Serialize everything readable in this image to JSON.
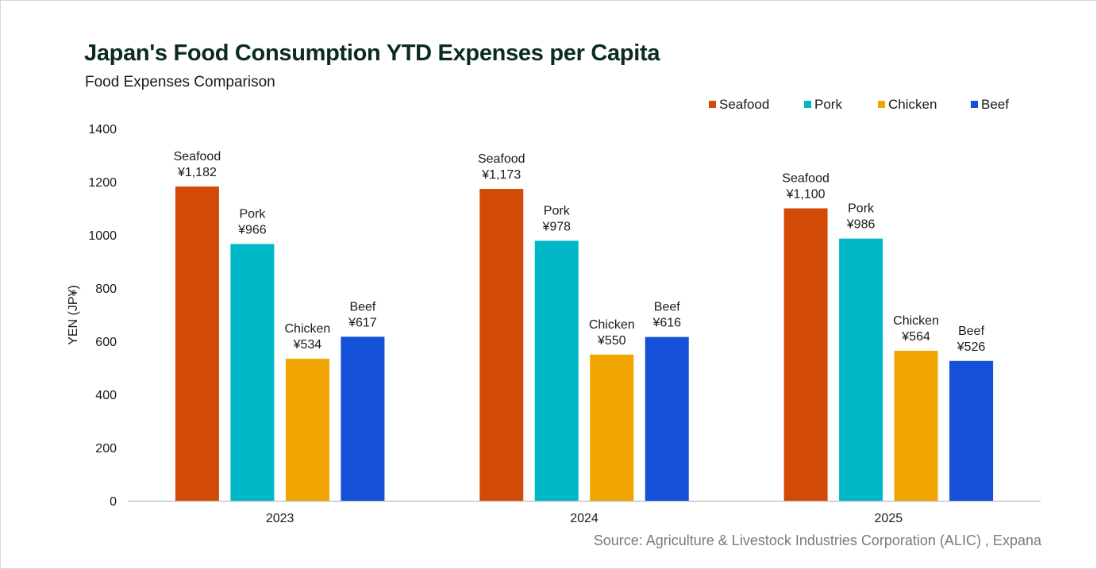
{
  "chart_data": {
    "type": "bar",
    "title": "Japan's Food Consumption YTD Expenses per Capita",
    "subtitle": "Food Expenses Comparison",
    "ylabel": "YEN (JP¥)",
    "xlabel": "",
    "ylim": [
      0,
      1400
    ],
    "yticks": [
      0,
      200,
      400,
      600,
      800,
      1000,
      1200,
      1400
    ],
    "grid": false,
    "legend_position": "top-right",
    "categories": [
      "2023",
      "2024",
      "2025"
    ],
    "series": [
      {
        "name": "Seafood",
        "color": "#d24b06",
        "values": [
          1182,
          1173,
          1100
        ],
        "labels": [
          "¥1,182",
          "¥1,173",
          "¥1,100"
        ]
      },
      {
        "name": "Pork",
        "color": "#00b8c8",
        "values": [
          966,
          978,
          986
        ],
        "labels": [
          "¥966",
          "¥978",
          "¥986"
        ]
      },
      {
        "name": "Chicken",
        "color": "#f0a500",
        "values": [
          534,
          550,
          564
        ],
        "labels": [
          "¥534",
          "¥550",
          "¥564"
        ]
      },
      {
        "name": "Beef",
        "color": "#1450d8",
        "values": [
          617,
          616,
          526
        ],
        "labels": [
          "¥617",
          "¥616",
          "¥526"
        ]
      }
    ],
    "source": "Source: Agriculture & Livestock Industries Corporation (ALIC) , Expana"
  }
}
